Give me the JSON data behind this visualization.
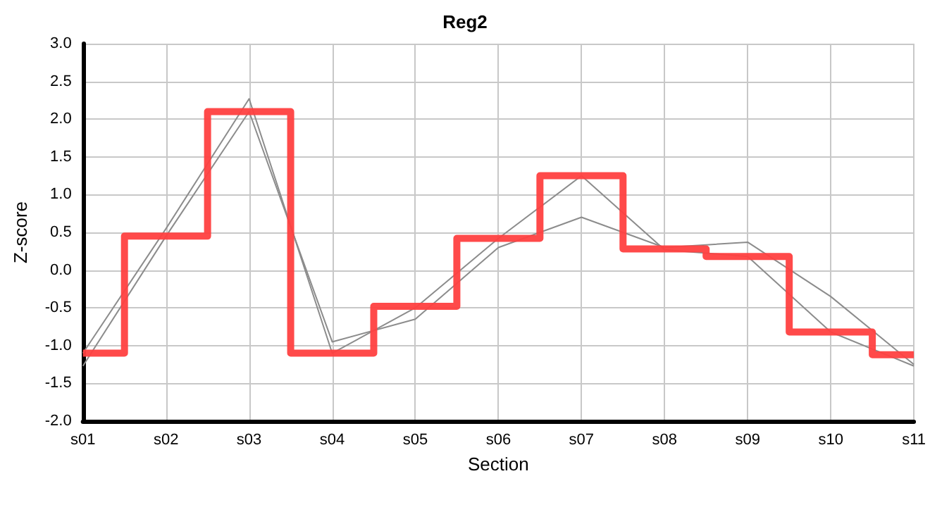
{
  "chart_data": {
    "type": "line",
    "title": "Reg2",
    "xlabel": "Section",
    "ylabel": "Z-score",
    "categories": [
      "s01",
      "s02",
      "s03",
      "s04",
      "s05",
      "s06",
      "s07",
      "s08",
      "s09",
      "s10",
      "s11"
    ],
    "series": [
      {
        "color": "#8c8c8c",
        "values": [
          -1.1,
          0.55,
          2.27,
          -1.1,
          -0.5,
          0.42,
          1.25,
          0.27,
          0.18,
          -0.82,
          -1.27
        ]
      },
      {
        "color": "#8c8c8c",
        "values": [
          -1.27,
          0.45,
          2.1,
          -0.95,
          -0.65,
          0.3,
          0.7,
          0.3,
          0.37,
          -0.35,
          -1.25
        ]
      },
      {
        "type": "step",
        "color": "#ff4040",
        "values": [
          -1.1,
          0.45,
          2.1,
          -1.1,
          -0.48,
          0.42,
          1.25,
          0.28,
          0.18,
          -0.82,
          -1.12
        ]
      }
    ],
    "ylim": [
      -2,
      3
    ],
    "yticks": [
      {
        "value": -2,
        "label": "-2.0"
      },
      -1.5,
      {
        "value": -1,
        "label": "-1.0"
      },
      -0.5,
      {
        "value": 0,
        "label": "0.0"
      },
      0.5,
      {
        "value": 1,
        "label": "1.0"
      },
      1.5,
      {
        "value": 2,
        "label": "2.0"
      },
      2.5,
      {
        "value": 3,
        "label": "3.0"
      }
    ],
    "grid": true,
    "marker": "none"
  }
}
